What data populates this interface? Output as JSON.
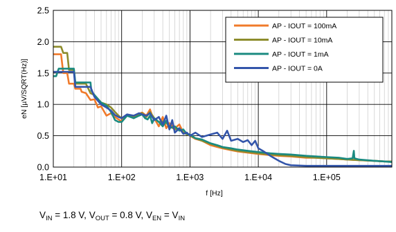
{
  "chart_data": {
    "type": "line",
    "xlabel": "f [Hz]",
    "ylabel": "eN [µV/SQRT(Hz)]",
    "xscale": "log",
    "xlim": [
      10,
      900000
    ],
    "ylim": [
      0,
      2.5
    ],
    "xticks": [
      10,
      100,
      1000,
      10000,
      100000
    ],
    "xtick_labels": [
      "1.E+01",
      "1.E+02",
      "1.E+03",
      "1.E+04",
      "1.E+05"
    ],
    "yticks": [
      0,
      0.5,
      1,
      1.5,
      2,
      2.5
    ],
    "ytick_labels": [
      "0.0",
      "0.5",
      "1.0",
      "1.5",
      "2.0",
      "2.5"
    ],
    "grid": true,
    "legend_position": "top-right",
    "series": [
      {
        "name": "AP - IOUT = 100mA",
        "color": "#f07a2a",
        "points": [
          [
            10,
            1.8
          ],
          [
            13,
            1.8
          ],
          [
            14,
            1.5
          ],
          [
            16,
            1.5
          ],
          [
            17,
            1.33
          ],
          [
            20,
            1.33
          ],
          [
            21,
            1.25
          ],
          [
            25,
            1.25
          ],
          [
            26,
            1.2
          ],
          [
            30,
            1.18
          ],
          [
            35,
            1.07
          ],
          [
            40,
            1.08
          ],
          [
            45,
            0.95
          ],
          [
            50,
            0.97
          ],
          [
            60,
            0.82
          ],
          [
            70,
            0.86
          ],
          [
            80,
            0.8
          ],
          [
            90,
            0.76
          ],
          [
            100,
            0.73
          ],
          [
            110,
            0.8
          ],
          [
            130,
            0.83
          ],
          [
            150,
            0.78
          ],
          [
            170,
            0.84
          ],
          [
            200,
            0.87
          ],
          [
            230,
            0.82
          ],
          [
            260,
            0.92
          ],
          [
            280,
            0.82
          ],
          [
            300,
            0.78
          ],
          [
            350,
            0.65
          ],
          [
            400,
            0.8
          ],
          [
            450,
            0.62
          ],
          [
            500,
            0.7
          ],
          [
            600,
            0.62
          ],
          [
            700,
            0.68
          ],
          [
            800,
            0.55
          ],
          [
            1000,
            0.5
          ],
          [
            1200,
            0.45
          ],
          [
            1500,
            0.42
          ],
          [
            2000,
            0.35
          ],
          [
            2500,
            0.32
          ],
          [
            3000,
            0.3
          ],
          [
            4000,
            0.27
          ],
          [
            5000,
            0.25
          ],
          [
            7000,
            0.23
          ],
          [
            10000,
            0.21
          ],
          [
            15000,
            0.19
          ],
          [
            20000,
            0.18
          ],
          [
            30000,
            0.17
          ],
          [
            50000,
            0.15
          ],
          [
            70000,
            0.15
          ],
          [
            100000,
            0.14
          ],
          [
            150000,
            0.13
          ],
          [
            200000,
            0.12
          ],
          [
            300000,
            0.11
          ],
          [
            500000,
            0.1
          ],
          [
            700000,
            0.09
          ],
          [
            900000,
            0.09
          ]
        ]
      },
      {
        "name": "AP - IOUT = 10mA",
        "color": "#8d8c2c",
        "points": [
          [
            10,
            1.92
          ],
          [
            13,
            1.92
          ],
          [
            14,
            1.82
          ],
          [
            16,
            1.82
          ],
          [
            17,
            1.55
          ],
          [
            20,
            1.55
          ],
          [
            21,
            1.33
          ],
          [
            30,
            1.33
          ],
          [
            35,
            1.18
          ],
          [
            40,
            1.15
          ],
          [
            50,
            1.03
          ],
          [
            60,
            1.0
          ],
          [
            70,
            0.95
          ],
          [
            80,
            0.88
          ],
          [
            90,
            0.82
          ],
          [
            100,
            0.78
          ],
          [
            120,
            0.82
          ],
          [
            150,
            0.8
          ],
          [
            180,
            0.85
          ],
          [
            200,
            0.86
          ],
          [
            230,
            0.8
          ],
          [
            260,
            0.88
          ],
          [
            300,
            0.78
          ],
          [
            350,
            0.72
          ],
          [
            400,
            0.73
          ],
          [
            450,
            0.7
          ],
          [
            500,
            0.66
          ],
          [
            600,
            0.6
          ],
          [
            700,
            0.62
          ],
          [
            800,
            0.55
          ],
          [
            1000,
            0.5
          ],
          [
            1200,
            0.46
          ],
          [
            1500,
            0.42
          ],
          [
            2000,
            0.37
          ],
          [
            2500,
            0.34
          ],
          [
            3000,
            0.31
          ],
          [
            4000,
            0.28
          ],
          [
            5000,
            0.26
          ],
          [
            7000,
            0.24
          ],
          [
            10000,
            0.22
          ],
          [
            15000,
            0.2
          ],
          [
            20000,
            0.19
          ],
          [
            30000,
            0.18
          ],
          [
            50000,
            0.16
          ],
          [
            70000,
            0.15
          ],
          [
            100000,
            0.14
          ],
          [
            150000,
            0.13
          ],
          [
            200000,
            0.12
          ],
          [
            300000,
            0.11
          ],
          [
            500000,
            0.1
          ],
          [
            700000,
            0.09
          ],
          [
            900000,
            0.09
          ]
        ]
      },
      {
        "name": "AP - IOUT = 1mA",
        "color": "#1a8a80",
        "points": [
          [
            10,
            1.45
          ],
          [
            11,
            1.45
          ],
          [
            12,
            1.57
          ],
          [
            20,
            1.57
          ],
          [
            21,
            1.35
          ],
          [
            35,
            1.35
          ],
          [
            36,
            1.22
          ],
          [
            40,
            1.15
          ],
          [
            50,
            1.03
          ],
          [
            60,
            0.98
          ],
          [
            70,
            0.88
          ],
          [
            80,
            0.75
          ],
          [
            90,
            0.72
          ],
          [
            100,
            0.72
          ],
          [
            120,
            0.82
          ],
          [
            150,
            0.78
          ],
          [
            180,
            0.82
          ],
          [
            200,
            0.84
          ],
          [
            220,
            0.78
          ],
          [
            240,
            0.76
          ],
          [
            260,
            0.82
          ],
          [
            280,
            0.7
          ],
          [
            300,
            0.78
          ],
          [
            350,
            0.72
          ],
          [
            400,
            0.65
          ],
          [
            450,
            0.74
          ],
          [
            500,
            0.62
          ],
          [
            600,
            0.65
          ],
          [
            700,
            0.58
          ],
          [
            800,
            0.6
          ],
          [
            900,
            0.53
          ],
          [
            1000,
            0.52
          ],
          [
            1200,
            0.46
          ],
          [
            1500,
            0.44
          ],
          [
            2000,
            0.38
          ],
          [
            2500,
            0.35
          ],
          [
            3000,
            0.32
          ],
          [
            4000,
            0.3
          ],
          [
            5000,
            0.28
          ],
          [
            7000,
            0.26
          ],
          [
            10000,
            0.24
          ],
          [
            15000,
            0.22
          ],
          [
            20000,
            0.21
          ],
          [
            30000,
            0.2
          ],
          [
            50000,
            0.18
          ],
          [
            70000,
            0.17
          ],
          [
            100000,
            0.16
          ],
          [
            150000,
            0.15
          ],
          [
            200000,
            0.13
          ],
          [
            240000,
            0.14
          ],
          [
            250000,
            0.26
          ],
          [
            255000,
            0.14
          ],
          [
            300000,
            0.12
          ],
          [
            500000,
            0.1
          ],
          [
            700000,
            0.09
          ],
          [
            900000,
            0.08
          ]
        ]
      },
      {
        "name": "AP - IOUT = 0A",
        "color": "#3355aa",
        "points": [
          [
            10,
            1.52
          ],
          [
            20,
            1.52
          ],
          [
            21,
            1.28
          ],
          [
            35,
            1.28
          ],
          [
            40,
            1.12
          ],
          [
            50,
            1.0
          ],
          [
            60,
            0.95
          ],
          [
            70,
            0.9
          ],
          [
            80,
            0.83
          ],
          [
            90,
            0.8
          ],
          [
            100,
            0.78
          ],
          [
            120,
            0.84
          ],
          [
            150,
            0.82
          ],
          [
            180,
            0.86
          ],
          [
            200,
            0.84
          ],
          [
            230,
            0.82
          ],
          [
            260,
            0.86
          ],
          [
            300,
            0.75
          ],
          [
            350,
            0.8
          ],
          [
            400,
            0.68
          ],
          [
            450,
            0.82
          ],
          [
            500,
            0.6
          ],
          [
            550,
            0.75
          ],
          [
            600,
            0.55
          ],
          [
            700,
            0.62
          ],
          [
            800,
            0.53
          ],
          [
            900,
            0.55
          ],
          [
            1000,
            0.5
          ],
          [
            1200,
            0.55
          ],
          [
            1500,
            0.48
          ],
          [
            2000,
            0.52
          ],
          [
            2500,
            0.55
          ],
          [
            3000,
            0.45
          ],
          [
            3500,
            0.58
          ],
          [
            4000,
            0.42
          ],
          [
            5000,
            0.45
          ],
          [
            6000,
            0.4
          ],
          [
            7000,
            0.43
          ],
          [
            8000,
            0.35
          ],
          [
            9000,
            0.42
          ],
          [
            10000,
            0.3
          ],
          [
            12000,
            0.25
          ],
          [
            15000,
            0.18
          ],
          [
            20000,
            0.1
          ],
          [
            25000,
            0.05
          ],
          [
            30000,
            0.03
          ],
          [
            50000,
            0.02
          ],
          [
            100000,
            0.02
          ],
          [
            200000,
            0.02
          ],
          [
            500000,
            0.02
          ],
          [
            900000,
            0.02
          ]
        ]
      }
    ]
  },
  "caption": {
    "v_in_sub": "IN",
    "v_in_value": " = 1.8 V, ",
    "v_out_sub": "OUT",
    "v_out_value": " = 0.8 V, ",
    "v_en_sub": "EN",
    "v_en_eq": " = ",
    "v_in2_sub": "IN",
    "v_letter": "V"
  }
}
